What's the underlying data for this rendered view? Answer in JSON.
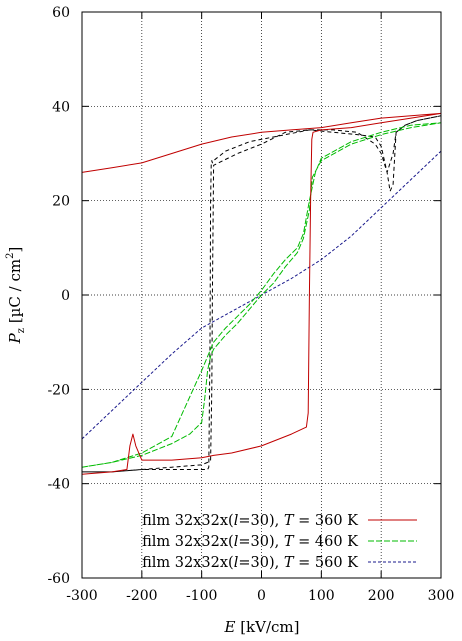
{
  "chart_data": {
    "type": "line",
    "xlabel": {
      "symbol": "E",
      "unit": " [kV/cm]"
    },
    "ylabel": {
      "symbol": "P",
      "subscript": "z",
      "unit_open": " [µC / cm",
      "unit_exp": "2",
      "unit_close": "]"
    },
    "xlim": [
      -300,
      300
    ],
    "ylim": [
      -60,
      60
    ],
    "xticks": [
      -300,
      -200,
      -100,
      0,
      100,
      200,
      300
    ],
    "yticks": [
      -60,
      -40,
      -20,
      0,
      20,
      40,
      60
    ],
    "xtick_labels": [
      "-300",
      "-200",
      "-100",
      "0",
      "100",
      "200",
      "300"
    ],
    "ytick_labels": [
      "-60",
      "-40",
      "-20",
      "0",
      "20",
      "40",
      "60"
    ],
    "grid": true,
    "legend_position": "bottom-right",
    "series": [
      {
        "name": "film 32x32x(l=30), T = 360 K",
        "legend": {
          "prefix": "film 32x32x(",
          "italic_l": "l",
          "middle": "=30), ",
          "italic_T": "T",
          "suffix": " = 360 K"
        },
        "color": "#c00000",
        "dash": "none",
        "x": [
          -300,
          -250,
          -225,
          -220,
          -215,
          -210,
          -200,
          -150,
          -100,
          -80,
          -50,
          0,
          50,
          75,
          78,
          80,
          82,
          84,
          86,
          100,
          150,
          200,
          250,
          300,
          250,
          200,
          150,
          100,
          50,
          0,
          -50,
          -100,
          -150,
          -200,
          -250,
          -300
        ],
        "y": [
          -38,
          -37.5,
          -37,
          -32,
          -29.5,
          -32,
          -35,
          -35,
          -34.5,
          -34,
          -33.5,
          -32,
          -29.5,
          -28,
          -25,
          0,
          20,
          33,
          34.5,
          35,
          35.5,
          36.5,
          37.5,
          38.5,
          38,
          37.5,
          36.5,
          35.5,
          35,
          34.5,
          33.5,
          32,
          30,
          28,
          27,
          26
        ]
      },
      {
        "name": "film 32x32x(l=30), T = 460 K",
        "legend": {
          "prefix": "film 32x32x(",
          "italic_l": "l",
          "middle": "=30), ",
          "italic_T": "T",
          "suffix": " = 460 K"
        },
        "color": "#00bb00",
        "dash": "6,2",
        "x": [
          -300,
          -250,
          -200,
          -150,
          -120,
          -100,
          -95,
          -90,
          -85,
          -80,
          -60,
          -40,
          -20,
          0,
          20,
          40,
          60,
          70,
          80,
          85,
          100,
          150,
          200,
          250,
          300,
          250,
          200,
          150,
          100,
          90,
          80,
          70,
          60,
          40,
          20,
          0,
          -20,
          -40,
          -60,
          -80,
          -100,
          -150,
          -200,
          -250,
          -300
        ],
        "y": [
          -36.5,
          -35.5,
          -34,
          -31.5,
          -29.5,
          -27,
          -22,
          -16,
          -13,
          -11.5,
          -8.5,
          -6,
          -3,
          0,
          2.5,
          6,
          9,
          12,
          18,
          25,
          28.5,
          32,
          34,
          35.5,
          36.5,
          36,
          34.5,
          32.5,
          29,
          26,
          20,
          13,
          10,
          7.5,
          4.5,
          1,
          -2,
          -4.5,
          -7,
          -10,
          -16,
          -30,
          -33.5,
          -35.5,
          -36.5
        ]
      },
      {
        "name": "film 32x32x(l=30), T = 560 K",
        "legend": {
          "prefix": "film 32x32x(",
          "italic_l": "l",
          "middle": "=30), ",
          "italic_T": "T",
          "suffix": " = 560 K"
        },
        "color": "#1a1a8c",
        "dash": "3,2",
        "x": [
          -300,
          -250,
          -200,
          -150,
          -100,
          -50,
          0,
          50,
          100,
          150,
          200,
          250,
          300
        ],
        "y": [
          -30.5,
          -24.5,
          -18.5,
          -12.5,
          -7,
          -3.5,
          0,
          3.5,
          7.5,
          12.5,
          18.5,
          24.5,
          30.5
        ]
      },
      {
        "name": "",
        "color": "#000000",
        "dash": "4,3",
        "x": [
          -300,
          -250,
          -200,
          -150,
          -100,
          -90,
          -88,
          -86,
          -85,
          -84,
          -83,
          -82,
          -80,
          -60,
          -40,
          -20,
          0,
          20,
          40,
          60,
          80,
          120,
          160,
          190,
          200,
          210,
          215,
          220,
          225,
          240,
          260,
          300,
          260,
          240,
          225,
          220,
          215,
          210,
          200,
          190,
          160,
          120,
          80,
          40,
          0,
          -40,
          -80,
          -82,
          -83,
          -85,
          -90,
          -100,
          -150,
          -200,
          -250,
          -300
        ],
        "y": [
          -37.5,
          -37.5,
          -37,
          -37,
          -37,
          -37,
          -36.5,
          -10,
          20,
          27.5,
          28.5,
          28,
          28.5,
          30.5,
          31.5,
          32.5,
          33,
          33.5,
          34,
          34.5,
          35,
          34.5,
          34,
          33.5,
          31.5,
          26,
          22,
          23.5,
          34.5,
          36,
          37,
          38,
          37,
          36,
          34.5,
          30,
          28,
          26,
          30,
          32,
          34.5,
          35,
          35,
          34.5,
          32,
          30,
          27.5,
          0,
          -20,
          -35,
          -35.5,
          -36,
          -36.5,
          -37,
          -37.5,
          -37.5
        ]
      }
    ]
  }
}
